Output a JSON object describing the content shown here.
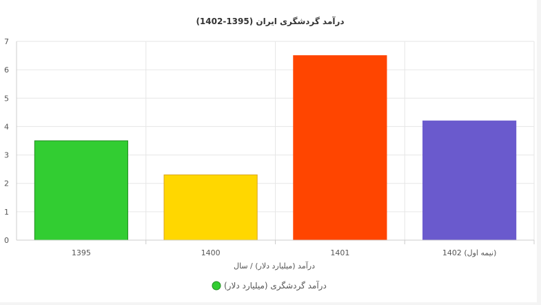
{
  "chart_data": {
    "type": "bar",
    "title": "درآمد گردشگری ایران (1395-1402)",
    "xlabel": "درآمد (میلیارد دلار) / سال",
    "ylabel": "",
    "categories": [
      "1395",
      "1400",
      "1401",
      "1402 (نیمه اول)"
    ],
    "series": [
      {
        "name": "درآمد گردشگری (میلیارد دلار)",
        "values": [
          3.5,
          2.3,
          6.5,
          4.2
        ]
      }
    ],
    "bar_colors": [
      "#32cd32",
      "#ffd700",
      "#ff4500",
      "#6a5acd"
    ],
    "bar_border_colors": [
      "#228b22",
      "#daa520",
      "#ff4500",
      "#6a5acd"
    ],
    "legend_color": "#32cd32",
    "ylim": [
      0,
      7
    ],
    "yticks": [
      0,
      1,
      2,
      3,
      4,
      5,
      6,
      7
    ],
    "grid": true,
    "legend_position": "bottom"
  }
}
